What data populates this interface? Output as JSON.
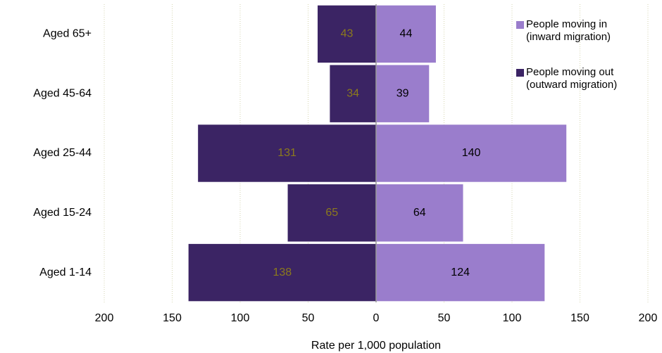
{
  "chart_data": {
    "type": "butterfly-bar",
    "categories": [
      "Aged 65+",
      "Aged 45-64",
      "Aged 25-44",
      "Aged 15-24",
      "Aged 1-14"
    ],
    "series": [
      {
        "name": "People moving in\n(inward migration)",
        "color": "#9a7dcc",
        "label_color": "#000000",
        "values": [
          44,
          39,
          140,
          64,
          124
        ]
      },
      {
        "name": "People moving out\n(outward migration)",
        "color": "#3b2464",
        "label_color": "#8c7a1c",
        "values": [
          -43,
          -34,
          -131,
          -65,
          -138
        ],
        "value_labels": [
          "43",
          "34",
          "131",
          "65",
          "138"
        ]
      }
    ],
    "xlabel": "Rate per 1,000 population",
    "xlim": [
      -200,
      200
    ],
    "xticks": [
      {
        "value": -200,
        "label": "200"
      },
      {
        "value": -150,
        "label": "150"
      },
      {
        "value": -100,
        "label": "100"
      },
      {
        "value": -50,
        "label": "50"
      },
      0,
      50,
      100,
      150,
      200
    ],
    "grid": true,
    "legend": "top-right"
  }
}
